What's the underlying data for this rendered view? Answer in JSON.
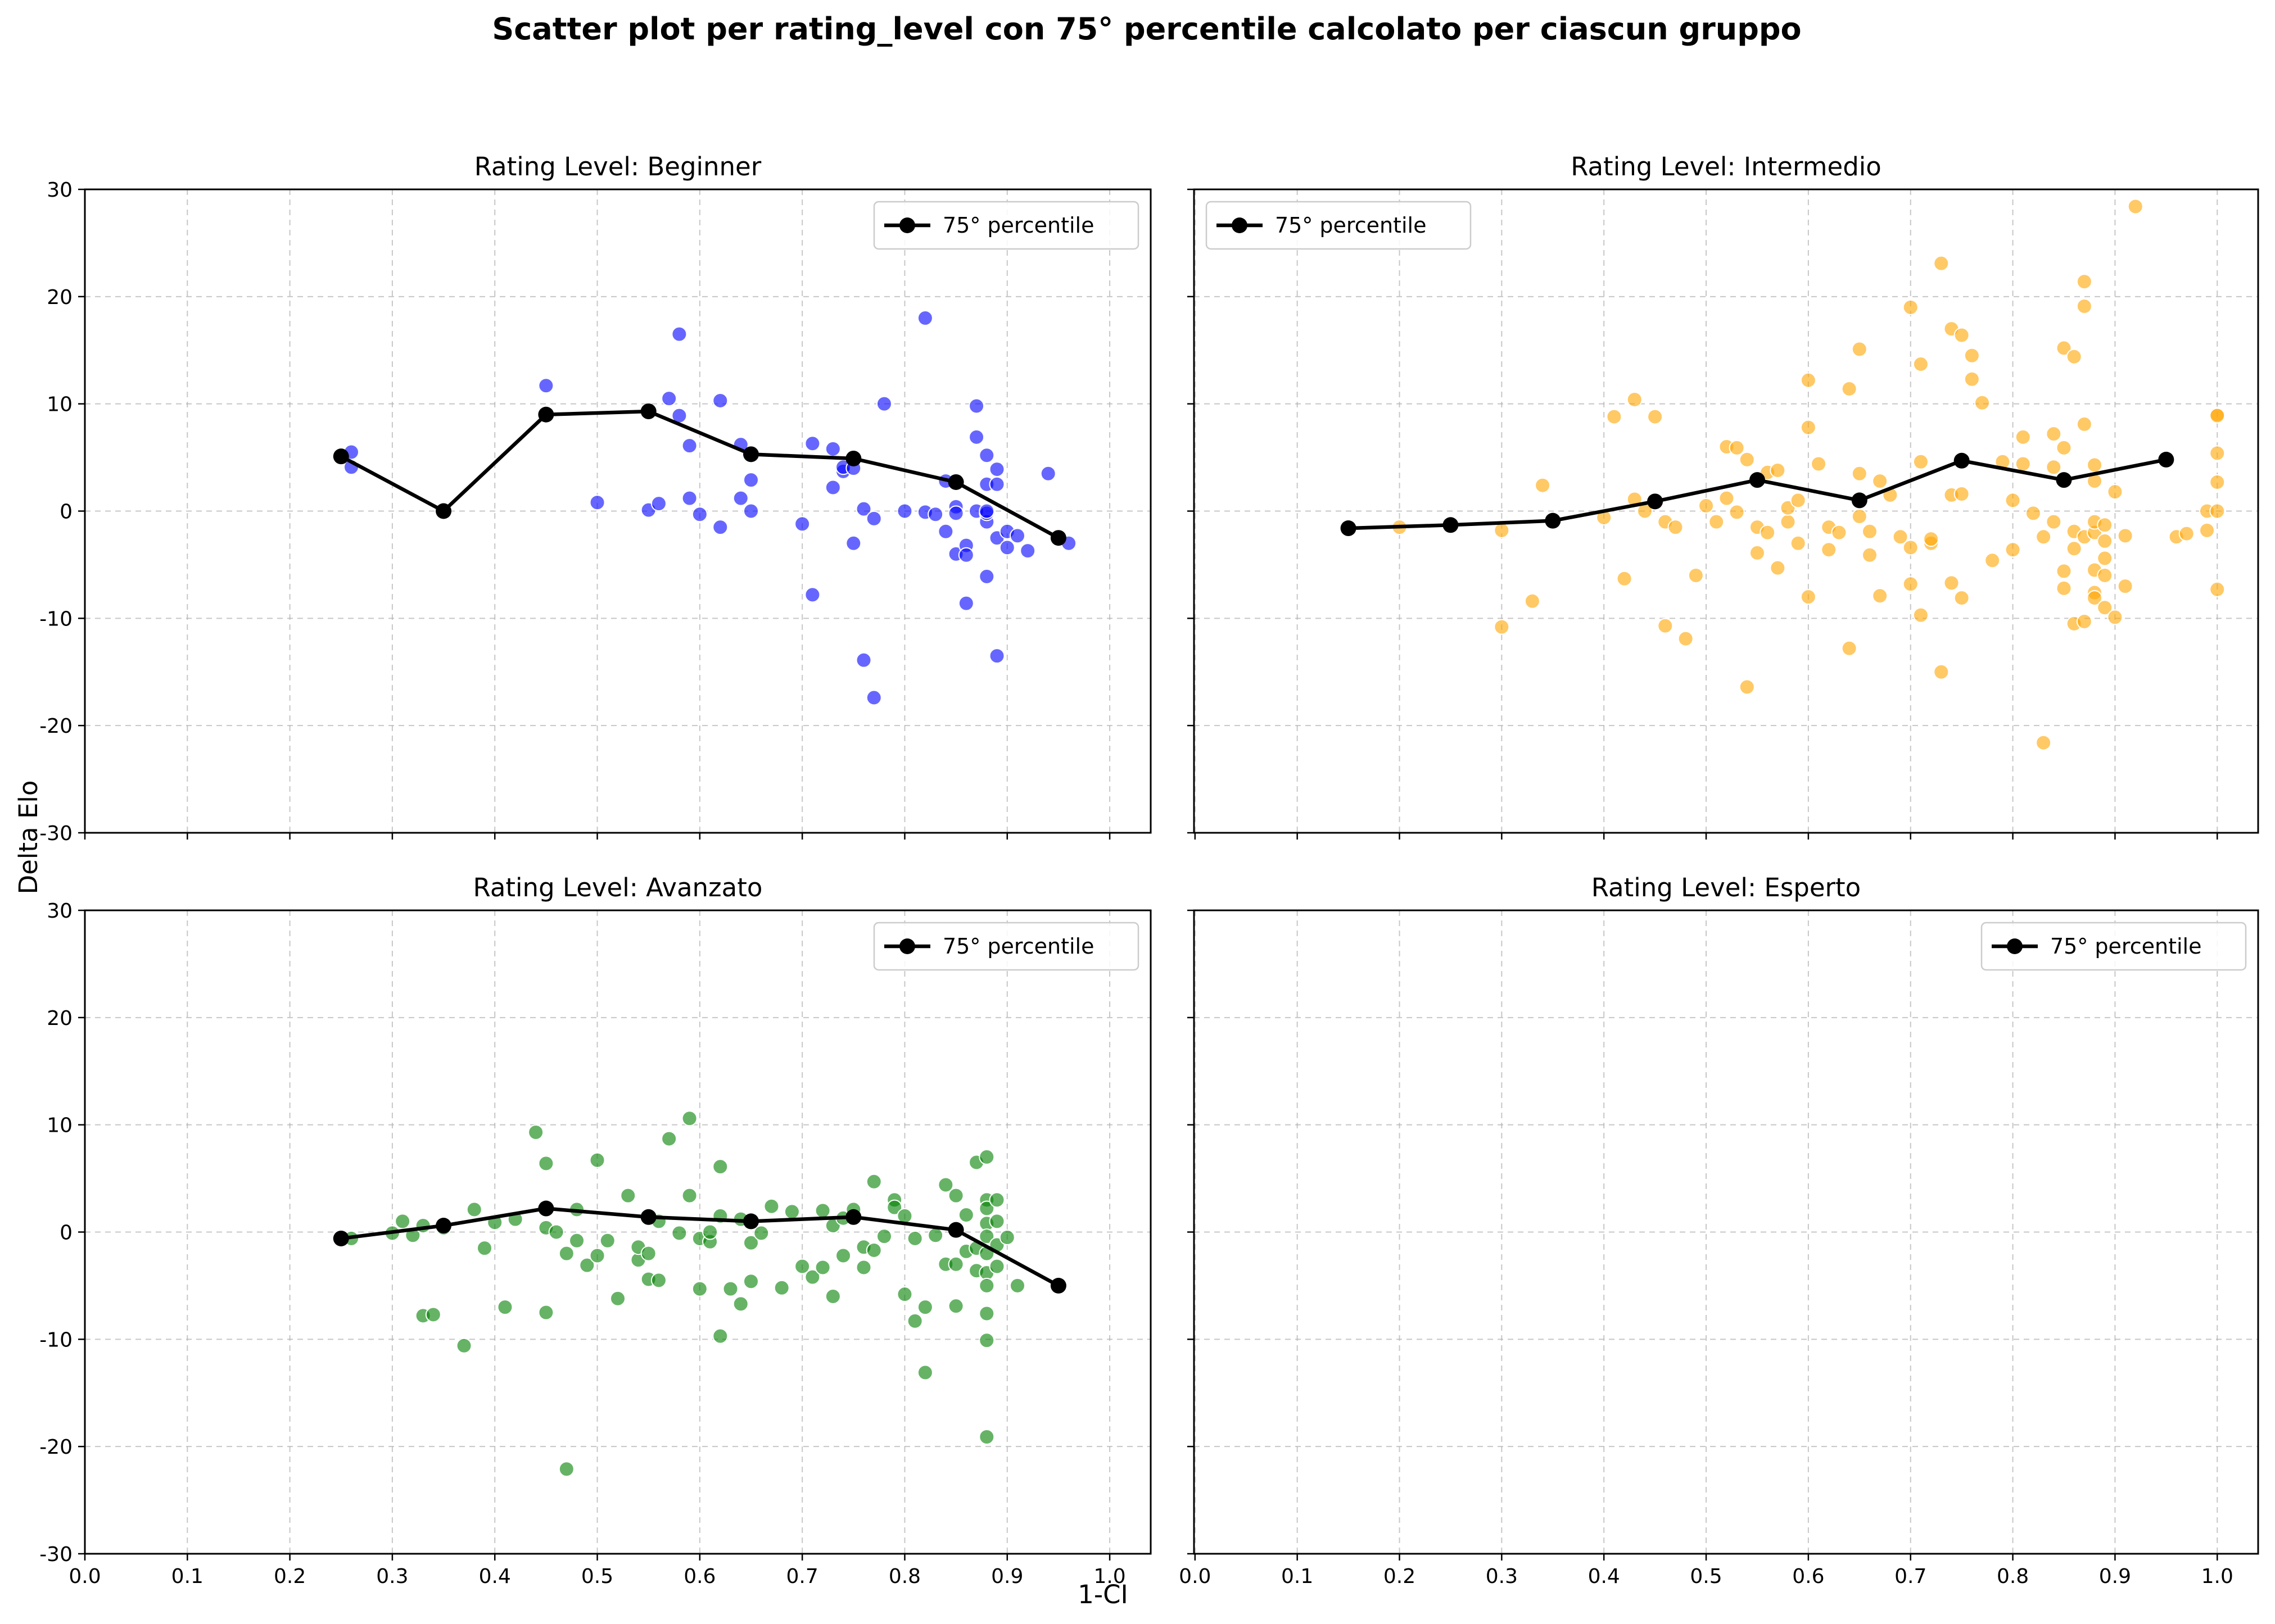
{
  "figure": {
    "title": "Scatter plot per rating_level con 75° percentile calcolato per ciascun gruppo",
    "xlabel": "1-CI",
    "ylabel": "Delta Elo"
  },
  "chart_data": [
    {
      "type": "scatter",
      "title": "Rating Level: Beginner",
      "xlim": [
        0.0,
        1.04
      ],
      "ylim": [
        -30,
        30
      ],
      "xticks": [
        "0.0",
        "0.1",
        "0.2",
        "0.3",
        "0.4",
        "0.5",
        "0.6",
        "0.7",
        "0.8",
        "0.9",
        "1.0"
      ],
      "yticks": [
        "-30",
        "-20",
        "-10",
        "0",
        "10",
        "20",
        "30"
      ],
      "grid": true,
      "legend_position": "upper-right",
      "point_color": "#0000ff",
      "series": [
        {
          "name": "",
          "kind": "points",
          "x": [
            0.26,
            0.26,
            0.45,
            0.5,
            0.55,
            0.56,
            0.57,
            0.58,
            0.58,
            0.59,
            0.59,
            0.6,
            0.62,
            0.62,
            0.64,
            0.64,
            0.65,
            0.65,
            0.7,
            0.71,
            0.71,
            0.73,
            0.73,
            0.74,
            0.74,
            0.75,
            0.75,
            0.76,
            0.76,
            0.77,
            0.77,
            0.78,
            0.8,
            0.82,
            0.82,
            0.83,
            0.84,
            0.84,
            0.85,
            0.85,
            0.85,
            0.86,
            0.86,
            0.86,
            0.87,
            0.87,
            0.87,
            0.88,
            0.88,
            0.88,
            0.88,
            0.88,
            0.88,
            0.89,
            0.89,
            0.89,
            0.89,
            0.9,
            0.9,
            0.91,
            0.92,
            0.94,
            0.96
          ],
          "y": [
            5.5,
            4.1,
            11.7,
            0.8,
            0.1,
            0.7,
            10.5,
            16.5,
            8.9,
            6.1,
            1.2,
            -0.3,
            10.3,
            -1.5,
            6.2,
            1.2,
            0.0,
            2.9,
            -1.2,
            -7.8,
            6.3,
            2.2,
            5.8,
            3.7,
            4.1,
            4.0,
            -3.0,
            0.2,
            -13.9,
            -0.7,
            -17.4,
            10.0,
            0.0,
            18.0,
            -0.1,
            -0.3,
            -1.9,
            2.8,
            -4.0,
            0.4,
            -0.2,
            -8.6,
            -3.2,
            -4.1,
            9.8,
            6.9,
            0.0,
            5.2,
            -1.0,
            -0.2,
            2.5,
            -6.1,
            0.0,
            3.9,
            -2.5,
            2.5,
            -13.5,
            -3.4,
            -1.9,
            -2.3,
            -3.7,
            3.5,
            -3.0
          ]
        },
        {
          "name": "75° percentile",
          "kind": "line",
          "x": [
            0.25,
            0.35,
            0.45,
            0.55,
            0.65,
            0.75,
            0.85,
            0.95
          ],
          "y": [
            5.1,
            0.0,
            9.0,
            9.3,
            5.3,
            4.9,
            2.7,
            -2.5
          ]
        }
      ]
    },
    {
      "type": "scatter",
      "title": "Rating Level: Intermedio",
      "xlim": [
        -0.001,
        1.04
      ],
      "ylim": [
        -30,
        30
      ],
      "xticks": [
        "0.0",
        "0.1",
        "0.2",
        "0.3",
        "0.4",
        "0.5",
        "0.6",
        "0.7",
        "0.8",
        "0.9",
        "1.0"
      ],
      "yticks": [
        "-30",
        "-20",
        "-10",
        "0",
        "10",
        "20",
        "30"
      ],
      "grid": true,
      "legend_position": "upper-left",
      "point_color": "#ffa500",
      "series": [
        {
          "name": "",
          "kind": "points",
          "x": [
            0.2,
            0.3,
            0.3,
            0.33,
            0.34,
            0.4,
            0.41,
            0.42,
            0.43,
            0.43,
            0.44,
            0.45,
            0.46,
            0.46,
            0.47,
            0.48,
            0.49,
            0.5,
            0.51,
            0.52,
            0.52,
            0.53,
            0.53,
            0.54,
            0.54,
            0.55,
            0.55,
            0.56,
            0.56,
            0.57,
            0.57,
            0.58,
            0.58,
            0.59,
            0.59,
            0.6,
            0.6,
            0.6,
            0.61,
            0.62,
            0.62,
            0.63,
            0.64,
            0.64,
            0.65,
            0.65,
            0.65,
            0.66,
            0.66,
            0.67,
            0.67,
            0.68,
            0.69,
            0.7,
            0.7,
            0.7,
            0.71,
            0.71,
            0.71,
            0.72,
            0.72,
            0.73,
            0.73,
            0.74,
            0.74,
            0.74,
            0.75,
            0.75,
            0.75,
            0.76,
            0.76,
            0.77,
            0.78,
            0.79,
            0.8,
            0.8,
            0.81,
            0.81,
            0.82,
            0.83,
            0.83,
            0.84,
            0.84,
            0.84,
            0.85,
            0.85,
            0.85,
            0.85,
            0.86,
            0.86,
            0.86,
            0.86,
            0.87,
            0.87,
            0.87,
            0.87,
            0.87,
            0.88,
            0.88,
            0.88,
            0.88,
            0.88,
            0.88,
            0.88,
            0.89,
            0.89,
            0.89,
            0.89,
            0.89,
            0.9,
            0.9,
            0.91,
            0.91,
            0.92,
            0.96,
            0.97,
            0.99,
            0.99,
            1.0,
            1.0,
            1.0,
            1.0,
            1.0,
            1.0
          ],
          "y": [
            -1.5,
            -10.8,
            -1.8,
            -8.4,
            2.4,
            -0.6,
            8.8,
            -6.3,
            1.1,
            10.4,
            0.0,
            8.8,
            -1.0,
            -10.7,
            -1.5,
            -11.9,
            -6.0,
            0.5,
            -1.0,
            1.2,
            6.0,
            5.9,
            -0.1,
            -16.4,
            4.8,
            -1.5,
            -3.9,
            3.6,
            -2.0,
            3.8,
            -5.3,
            -1.0,
            0.3,
            1.0,
            -3.0,
            12.2,
            7.8,
            -8.0,
            4.4,
            -3.6,
            -1.5,
            -2.0,
            11.4,
            -12.8,
            -0.5,
            3.5,
            15.1,
            -1.9,
            -4.1,
            2.8,
            -7.9,
            1.5,
            -2.4,
            19.0,
            -3.4,
            -6.8,
            13.7,
            -9.7,
            4.6,
            -3.0,
            -2.6,
            23.1,
            -15.0,
            -6.7,
            1.5,
            17.0,
            16.4,
            -8.1,
            1.6,
            14.5,
            12.3,
            10.1,
            -4.6,
            4.6,
            1.0,
            -3.6,
            6.9,
            4.4,
            -0.2,
            -21.6,
            -2.4,
            -1.0,
            7.2,
            4.1,
            15.2,
            5.9,
            -5.6,
            -7.2,
            14.4,
            -1.9,
            -3.5,
            -10.5,
            -10.3,
            -2.4,
            21.4,
            19.1,
            8.1,
            -7.6,
            -2.0,
            -5.5,
            -1.0,
            4.3,
            -8.1,
            2.8,
            -4.4,
            -9.0,
            -2.8,
            -6.0,
            -1.3,
            -9.9,
            1.8,
            -7.0,
            -2.3,
            28.4,
            -2.4,
            -2.1,
            0.0,
            -1.8,
            9.0,
            5.4,
            2.7,
            0.0,
            -7.3,
            8.9
          ]
        },
        {
          "name": "75° percentile",
          "kind": "line",
          "x": [
            0.15,
            0.25,
            0.35,
            0.45,
            0.55,
            0.65,
            0.75,
            0.85,
            0.95
          ],
          "y": [
            -1.6,
            -1.3,
            -0.9,
            0.9,
            2.9,
            1.0,
            4.7,
            2.9,
            4.8
          ]
        }
      ]
    },
    {
      "type": "scatter",
      "title": "Rating Level: Avanzato",
      "xlim": [
        0.0,
        1.04
      ],
      "ylim": [
        -30,
        30
      ],
      "xticks": [
        "0.0",
        "0.1",
        "0.2",
        "0.3",
        "0.4",
        "0.5",
        "0.6",
        "0.7",
        "0.8",
        "0.9",
        "1.0"
      ],
      "yticks": [
        "-30",
        "-20",
        "-10",
        "0",
        "10",
        "20",
        "30"
      ],
      "grid": true,
      "legend_position": "upper-right",
      "point_color": "#008000",
      "series": [
        {
          "name": "",
          "kind": "points",
          "x": [
            0.25,
            0.26,
            0.3,
            0.31,
            0.32,
            0.33,
            0.33,
            0.34,
            0.35,
            0.37,
            0.38,
            0.39,
            0.4,
            0.41,
            0.42,
            0.44,
            0.45,
            0.45,
            0.45,
            0.46,
            0.47,
            0.47,
            0.48,
            0.48,
            0.49,
            0.5,
            0.5,
            0.51,
            0.52,
            0.53,
            0.54,
            0.54,
            0.55,
            0.55,
            0.56,
            0.56,
            0.57,
            0.58,
            0.59,
            0.59,
            0.6,
            0.6,
            0.61,
            0.61,
            0.62,
            0.62,
            0.62,
            0.63,
            0.64,
            0.64,
            0.65,
            0.65,
            0.66,
            0.67,
            0.68,
            0.69,
            0.7,
            0.71,
            0.72,
            0.72,
            0.73,
            0.73,
            0.74,
            0.74,
            0.75,
            0.76,
            0.76,
            0.77,
            0.77,
            0.78,
            0.79,
            0.79,
            0.8,
            0.8,
            0.81,
            0.81,
            0.82,
            0.82,
            0.83,
            0.84,
            0.84,
            0.85,
            0.85,
            0.85,
            0.86,
            0.86,
            0.87,
            0.87,
            0.87,
            0.88,
            0.88,
            0.88,
            0.88,
            0.88,
            0.88,
            0.88,
            0.88,
            0.88,
            0.88,
            0.88,
            0.89,
            0.89,
            0.89,
            0.89,
            0.9,
            0.91
          ],
          "y": [
            -0.5,
            -0.6,
            -0.1,
            1.0,
            -0.3,
            0.6,
            -7.8,
            -7.7,
            0.4,
            -10.6,
            2.1,
            -1.5,
            0.9,
            -7.0,
            1.2,
            9.3,
            6.4,
            0.4,
            -7.5,
            0.0,
            -2.0,
            -22.1,
            2.1,
            -0.8,
            -3.1,
            6.7,
            -2.2,
            -0.8,
            -6.2,
            3.4,
            -2.6,
            -1.4,
            -2.0,
            -4.4,
            1.0,
            -4.5,
            8.7,
            -0.1,
            10.6,
            3.4,
            -5.3,
            -0.6,
            -0.9,
            0.0,
            6.1,
            -9.7,
            1.5,
            -5.3,
            -6.7,
            1.2,
            -4.6,
            -1.0,
            -0.1,
            2.4,
            -5.2,
            1.9,
            -3.2,
            -4.2,
            -3.3,
            2.0,
            0.6,
            -6.0,
            1.3,
            -2.2,
            2.1,
            -3.3,
            -1.4,
            4.7,
            -1.7,
            -0.4,
            3.0,
            2.3,
            -5.8,
            1.5,
            -0.6,
            -8.3,
            -7.0,
            -13.1,
            -0.3,
            -3.0,
            4.4,
            -3.0,
            -6.9,
            3.4,
            -1.8,
            1.6,
            -1.5,
            -3.6,
            6.5,
            7.0,
            3.0,
            2.2,
            0.8,
            -0.4,
            -2.0,
            -3.8,
            -5.0,
            -7.6,
            -10.1,
            -19.1,
            3.0,
            1.0,
            -1.2,
            -3.2,
            -0.5,
            -5.0
          ]
        },
        {
          "name": "75° percentile",
          "kind": "line",
          "x": [
            0.25,
            0.35,
            0.45,
            0.55,
            0.65,
            0.75,
            0.85,
            0.95
          ],
          "y": [
            -0.6,
            0.6,
            2.2,
            1.4,
            1.0,
            1.4,
            0.2,
            -5.0
          ]
        }
      ]
    },
    {
      "type": "scatter",
      "title": "Rating Level: Esperto",
      "xlim": [
        -0.001,
        1.04
      ],
      "ylim": [
        -30,
        30
      ],
      "xticks": [
        "0.0",
        "0.1",
        "0.2",
        "0.3",
        "0.4",
        "0.5",
        "0.6",
        "0.7",
        "0.8",
        "0.9",
        "1.0"
      ],
      "yticks": [
        "-30",
        "-20",
        "-10",
        "0",
        "10",
        "20",
        "30"
      ],
      "grid": true,
      "legend_position": "upper-right",
      "point_color": "#808080",
      "series": [
        {
          "name": "",
          "kind": "points",
          "x": [],
          "y": []
        },
        {
          "name": "75° percentile",
          "kind": "line",
          "x": [],
          "y": []
        }
      ]
    }
  ]
}
